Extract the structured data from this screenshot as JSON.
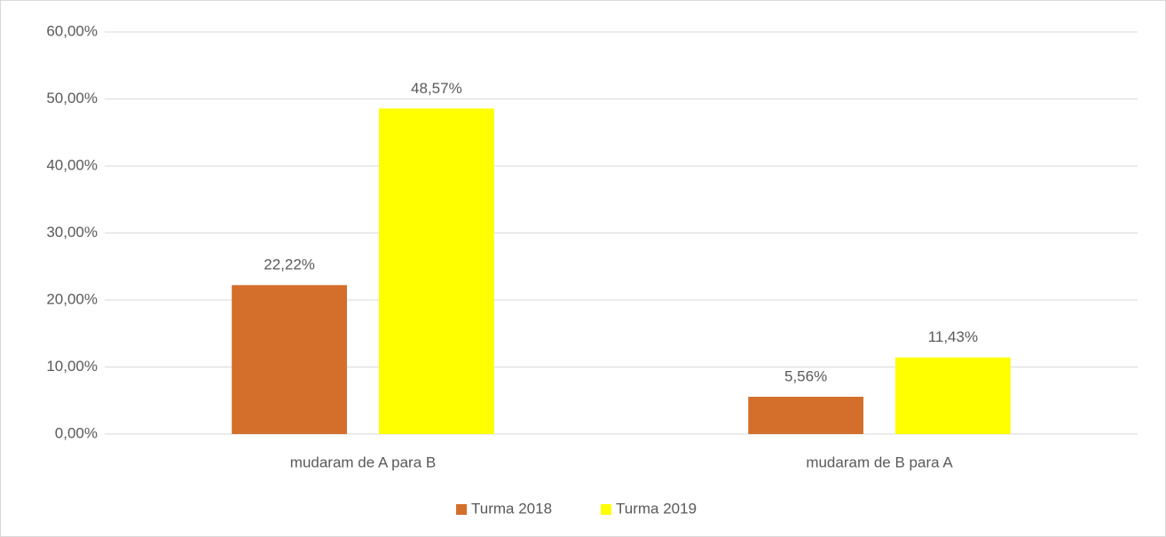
{
  "chart_data": {
    "type": "bar",
    "categories": [
      "mudaram de A para B",
      "mudaram de B para A"
    ],
    "series": [
      {
        "name": "Turma 2018",
        "color": "#d46e2b",
        "values": [
          22.22,
          5.56
        ],
        "value_labels": [
          "22,22%",
          "5,56%"
        ]
      },
      {
        "name": "Turma 2019",
        "color": "#ffff00",
        "values": [
          48.57,
          11.43
        ],
        "value_labels": [
          "48,57%",
          "11,43%"
        ]
      }
    ],
    "ylim": [
      0,
      60
    ],
    "yticks": [
      {
        "value": 0,
        "label": "0,00%"
      },
      {
        "value": 10,
        "label": "10,00%"
      },
      {
        "value": 20,
        "label": "20,00%"
      },
      {
        "value": 30,
        "label": "30,00%"
      },
      {
        "value": 40,
        "label": "40,00%"
      },
      {
        "value": 50,
        "label": "50,00%"
      },
      {
        "value": 60,
        "label": "60,00%"
      }
    ],
    "grid": true,
    "legend": "bottom"
  }
}
